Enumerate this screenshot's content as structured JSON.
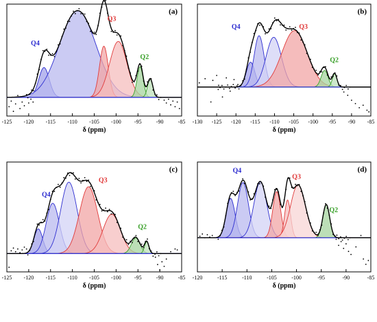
{
  "figure": {
    "xlabel": "δ (ppm)"
  },
  "colors": {
    "Q4": "#2e2ed0",
    "Q3": "#e03a3a",
    "Q2": "#3aa02a",
    "baseline": "#3a3ad8",
    "envelope": "#000000",
    "points": "#000000"
  },
  "chart_data": [
    {
      "type": "scatter",
      "panel_label": "(a)",
      "xlabel": "δ (ppm)",
      "xlim": [
        -125,
        -85
      ],
      "xticks": [
        -125,
        -120,
        -115,
        -110,
        -105,
        -100,
        -95,
        -90,
        -85
      ],
      "ylim": [
        -0.2,
        1.0
      ],
      "annotations": [
        {
          "text": "Q4",
          "group": "Q4",
          "x": -118.5,
          "y": 0.56
        },
        {
          "text": "Q3",
          "group": "Q3",
          "x": -101.0,
          "y": 0.82
        },
        {
          "text": "Q2",
          "group": "Q2",
          "x": -93.5,
          "y": 0.41
        }
      ],
      "components": [
        {
          "group": "Q4",
          "center": -116.5,
          "amplitude": 0.32,
          "width": 1.2
        },
        {
          "group": "Q4",
          "center": -108.8,
          "amplitude": 0.93,
          "width": 4.2
        },
        {
          "group": "Q3",
          "center": -102.8,
          "amplitude": 0.55,
          "width": 1.0
        },
        {
          "group": "Q3",
          "center": -99.5,
          "amplitude": 0.6,
          "width": 2.0
        },
        {
          "group": "Q2",
          "center": -94.5,
          "amplitude": 0.33,
          "width": 0.7
        },
        {
          "group": "Q2",
          "center": -92.2,
          "amplitude": 0.2,
          "width": 0.6
        }
      ],
      "scatter_noise": [
        {
          "x": -124.5,
          "y": -0.1
        },
        {
          "x": -124.0,
          "y": -0.04
        },
        {
          "x": -123.5,
          "y": -0.15
        },
        {
          "x": -123.0,
          "y": -0.07
        },
        {
          "x": -122.5,
          "y": 0.02
        },
        {
          "x": -122.0,
          "y": -0.12
        },
        {
          "x": -121.5,
          "y": -0.05
        },
        {
          "x": -121.0,
          "y": -0.09
        },
        {
          "x": -120.5,
          "y": 0.03
        },
        {
          "x": -120.0,
          "y": -0.06
        },
        {
          "x": -119.5,
          "y": -0.02
        },
        {
          "x": -119.0,
          "y": -0.05
        },
        {
          "x": -89.0,
          "y": -0.03
        },
        {
          "x": -88.5,
          "y": -0.06
        },
        {
          "x": -88.0,
          "y": -0.02
        },
        {
          "x": -87.5,
          "y": -0.08
        },
        {
          "x": -87.0,
          "y": -0.04
        },
        {
          "x": -86.5,
          "y": -0.1
        },
        {
          "x": -86.0,
          "y": -0.05
        },
        {
          "x": -85.5,
          "y": -0.12
        }
      ]
    },
    {
      "type": "scatter",
      "panel_label": "(b)",
      "xlabel": "δ (ppm)",
      "xlim": [
        -130,
        -85
      ],
      "xticks": [
        -130,
        -125,
        -120,
        -115,
        -110,
        -105,
        -100,
        -95,
        -90,
        -85
      ],
      "ylim": [
        -0.35,
        1.0
      ],
      "annotations": [
        {
          "text": "Q4",
          "group": "Q4",
          "x": -120.0,
          "y": 0.7
        },
        {
          "text": "Q3",
          "group": "Q3",
          "x": -102.5,
          "y": 0.7
        },
        {
          "text": "Q2",
          "group": "Q2",
          "x": -94.5,
          "y": 0.3
        }
      ],
      "components": [
        {
          "group": "Q4",
          "center": -116.2,
          "amplitude": 0.3,
          "width": 1.1
        },
        {
          "group": "Q4",
          "center": -114.0,
          "amplitude": 0.62,
          "width": 1.3
        },
        {
          "group": "Q4",
          "center": -110.2,
          "amplitude": 0.6,
          "width": 2.0
        },
        {
          "group": "Q3",
          "center": -104.8,
          "amplitude": 0.68,
          "width": 3.3
        },
        {
          "group": "Q2",
          "center": -97.0,
          "amplitude": 0.2,
          "width": 0.9
        },
        {
          "group": "Q2",
          "center": -94.4,
          "amplitude": 0.16,
          "width": 0.6
        }
      ],
      "scatter_noise": [
        {
          "x": -129.5,
          "y": 0.05
        },
        {
          "x": -128.0,
          "y": 0.1
        },
        {
          "x": -126.5,
          "y": -0.18
        },
        {
          "x": -126.0,
          "y": 0.08
        },
        {
          "x": -125.0,
          "y": 0.14
        },
        {
          "x": -124.5,
          "y": 0.02
        },
        {
          "x": -123.5,
          "y": -0.12
        },
        {
          "x": -122.5,
          "y": 0.11
        },
        {
          "x": -121.5,
          "y": -0.05
        },
        {
          "x": -120.5,
          "y": 0.09
        },
        {
          "x": -119.5,
          "y": 0.03
        },
        {
          "x": -92.0,
          "y": -0.06
        },
        {
          "x": -91.0,
          "y": -0.1
        },
        {
          "x": -90.0,
          "y": -0.16
        },
        {
          "x": -89.0,
          "y": -0.2
        },
        {
          "x": -88.0,
          "y": -0.25
        },
        {
          "x": -87.0,
          "y": -0.22
        },
        {
          "x": -86.0,
          "y": -0.28
        },
        {
          "x": -85.5,
          "y": -0.3
        }
      ]
    },
    {
      "type": "scatter",
      "panel_label": "(c)",
      "xlabel": "δ (ppm)",
      "xlim": [
        -125,
        -85
      ],
      "xticks": [
        -125,
        -120,
        -115,
        -110,
        -105,
        -100,
        -95,
        -90,
        -85
      ],
      "ylim": [
        -0.2,
        1.0
      ],
      "annotations": [
        {
          "text": "Q4",
          "group": "Q4",
          "x": -116.0,
          "y": 0.62
        },
        {
          "text": "Q3",
          "group": "Q3",
          "x": -103.0,
          "y": 0.78
        },
        {
          "text": "Q2",
          "group": "Q2",
          "x": -94.0,
          "y": 0.27
        }
      ],
      "components": [
        {
          "group": "Q4",
          "center": -117.8,
          "amplitude": 0.27,
          "width": 1.0
        },
        {
          "group": "Q4",
          "center": -114.5,
          "amplitude": 0.55,
          "width": 1.5
        },
        {
          "group": "Q4",
          "center": -110.8,
          "amplitude": 0.78,
          "width": 1.9
        },
        {
          "group": "Q3",
          "center": -106.3,
          "amplitude": 0.73,
          "width": 2.1
        },
        {
          "group": "Q3",
          "center": -101.0,
          "amplitude": 0.43,
          "width": 2.0
        },
        {
          "group": "Q2",
          "center": -95.5,
          "amplitude": 0.17,
          "width": 1.0
        },
        {
          "group": "Q2",
          "center": -93.0,
          "amplitude": 0.13,
          "width": 0.5
        }
      ],
      "scatter_noise": [
        {
          "x": -124.5,
          "y": -0.15
        },
        {
          "x": -124.0,
          "y": 0.03
        },
        {
          "x": -123.5,
          "y": 0.06
        },
        {
          "x": -123.0,
          "y": 0.02
        },
        {
          "x": -122.5,
          "y": 0.05
        },
        {
          "x": -122.0,
          "y": 0.01
        },
        {
          "x": -121.5,
          "y": 0.04
        },
        {
          "x": -121.0,
          "y": 0.07
        },
        {
          "x": -120.5,
          "y": 0.05
        },
        {
          "x": -91.0,
          "y": -0.04
        },
        {
          "x": -90.5,
          "y": -0.12
        },
        {
          "x": -90.0,
          "y": -0.18
        },
        {
          "x": -89.5,
          "y": -0.09
        },
        {
          "x": -89.0,
          "y": -0.14
        },
        {
          "x": -88.5,
          "y": -0.06
        },
        {
          "x": -87.5,
          "y": 0.02
        },
        {
          "x": -86.5,
          "y": 0.05
        },
        {
          "x": -86.0,
          "y": 0.04
        }
      ]
    },
    {
      "type": "scatter",
      "panel_label": "(d)",
      "xlabel": "δ (ppm)",
      "xlim": [
        -120,
        -85
      ],
      "xticks": [
        -120,
        -115,
        -110,
        -105,
        -100,
        -95,
        -90,
        -85
      ],
      "ylim": [
        -0.45,
        1.0
      ],
      "annotations": [
        {
          "text": "Q4",
          "group": "Q4",
          "x": -112.0,
          "y": 0.86
        },
        {
          "text": "Q3",
          "group": "Q3",
          "x": -100.0,
          "y": 0.78
        },
        {
          "text": "Q2",
          "group": "Q2",
          "x": -92.5,
          "y": 0.34
        }
      ],
      "components": [
        {
          "group": "Q4",
          "center": -113.3,
          "amplitude": 0.52,
          "width": 0.9
        },
        {
          "group": "Q4",
          "center": -110.8,
          "amplitude": 0.73,
          "width": 1.1
        },
        {
          "group": "Q4",
          "center": -107.3,
          "amplitude": 0.74,
          "width": 1.3
        },
        {
          "group": "Q3",
          "center": -104.0,
          "amplitude": 0.61,
          "width": 0.8
        },
        {
          "group": "Q3",
          "center": -101.8,
          "amplitude": 0.5,
          "width": 0.6
        },
        {
          "group": "Q3",
          "center": -99.7,
          "amplitude": 0.7,
          "width": 1.5
        },
        {
          "group": "Q2",
          "center": -94.0,
          "amplitude": 0.44,
          "width": 0.7
        }
      ],
      "scatter_noise": [
        {
          "x": -119.5,
          "y": 0.02
        },
        {
          "x": -119.0,
          "y": 0.05
        },
        {
          "x": -118.5,
          "y": 0.0
        },
        {
          "x": -118.0,
          "y": 0.04
        },
        {
          "x": -117.5,
          "y": 0.01
        },
        {
          "x": -117.0,
          "y": 0.03
        },
        {
          "x": -92.0,
          "y": -0.02
        },
        {
          "x": -91.5,
          "y": -0.1
        },
        {
          "x": -91.0,
          "y": -0.05
        },
        {
          "x": -90.5,
          "y": -0.14
        },
        {
          "x": -90.0,
          "y": -0.08
        },
        {
          "x": -89.5,
          "y": -0.18
        },
        {
          "x": -89.0,
          "y": -0.22
        },
        {
          "x": -88.0,
          "y": -0.12
        },
        {
          "x": -87.0,
          "y": 0.03
        },
        {
          "x": -86.5,
          "y": -0.28
        },
        {
          "x": -86.0,
          "y": -0.35
        },
        {
          "x": -85.5,
          "y": -0.3
        }
      ]
    }
  ]
}
